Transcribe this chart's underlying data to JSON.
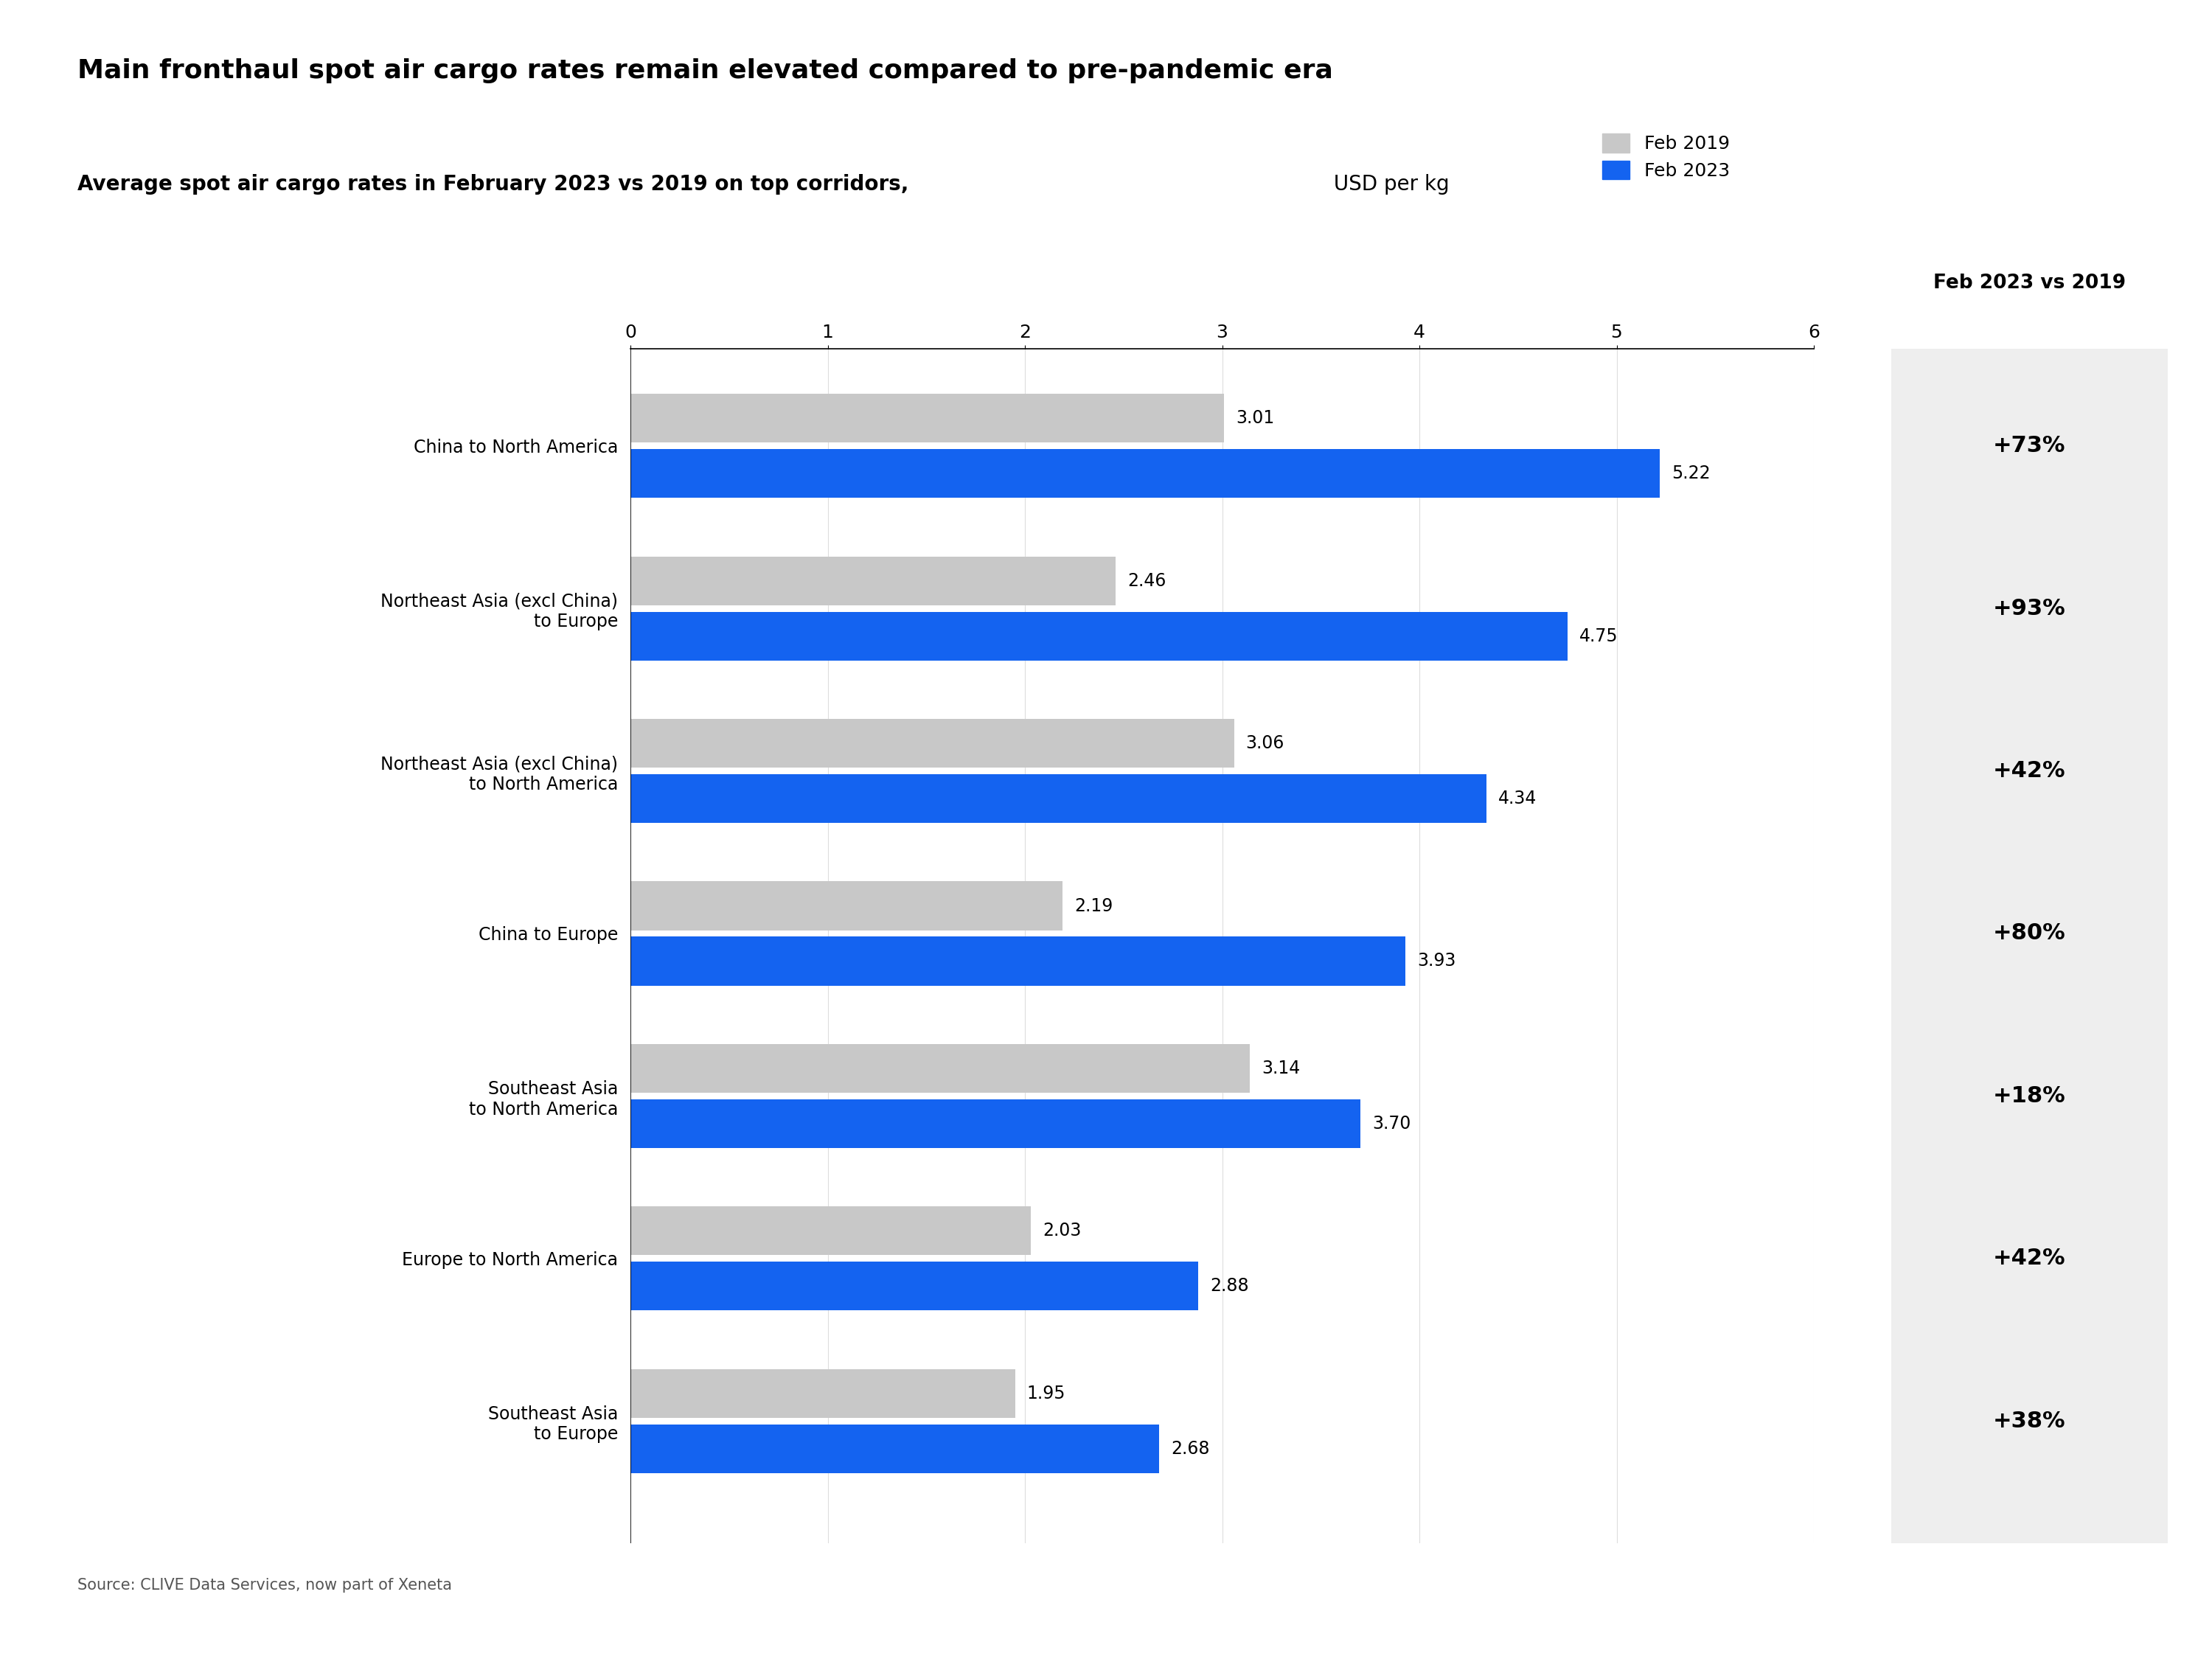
{
  "title": "Main fronthaul spot air cargo rates remain elevated compared to pre-pandemic era",
  "subtitle_bold": "Average spot air cargo rates in February 2023 vs 2019 on top corridors,",
  "subtitle_normal": " USD per kg",
  "source": "Source: CLIVE Data Services, now part of Xeneta",
  "categories": [
    "China to North America",
    "Northeast Asia (excl China)\nto Europe",
    "Northeast Asia (excl China)\nto North America",
    "China to Europe",
    "Southeast Asia\nto North America",
    "Europe to North America",
    "Southeast Asia\nto Europe"
  ],
  "values_2019": [
    3.01,
    2.46,
    3.06,
    2.19,
    3.14,
    2.03,
    1.95
  ],
  "values_2023": [
    5.22,
    4.75,
    4.34,
    3.93,
    3.7,
    2.88,
    2.68
  ],
  "changes": [
    "+73%",
    "+93%",
    "+42%",
    "+80%",
    "+18%",
    "+42%",
    "+38%"
  ],
  "color_2019": "#c8c8c8",
  "color_2023": "#1463f0",
  "xlim": [
    0,
    6
  ],
  "xticks": [
    0,
    1,
    2,
    3,
    4,
    5,
    6
  ],
  "right_panel_header": "Feb 2023 vs 2019",
  "legend_2019": "Feb 2019",
  "legend_2023": "Feb 2023",
  "background_color": "#ffffff",
  "right_panel_bg": "#eeeeee"
}
